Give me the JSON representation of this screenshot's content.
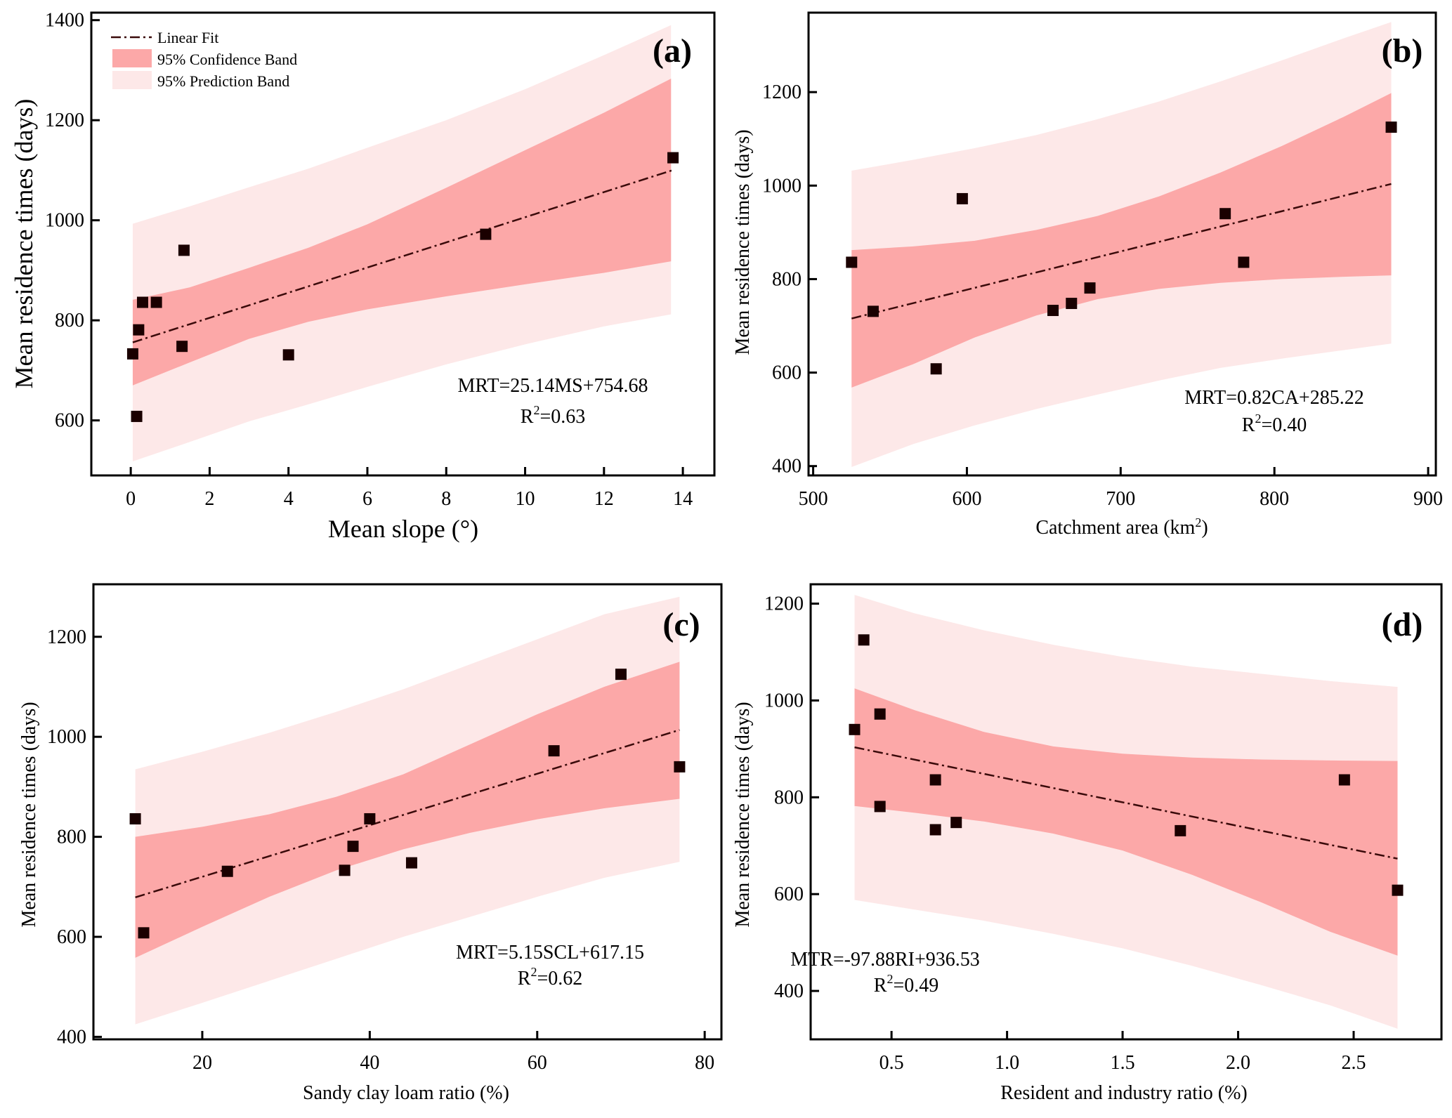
{
  "colors": {
    "confidence_band": "#fca8a8",
    "prediction_band": "#fde8e8",
    "point": "#1a0000",
    "fit_line": "#3a0a0a"
  },
  "legend": {
    "items": [
      {
        "label": "Linear Fit",
        "kind": "line"
      },
      {
        "label": "95% Confidence Band",
        "kind": "confidence"
      },
      {
        "label": "95% Prediction Band",
        "kind": "prediction"
      }
    ],
    "placement": "top-left of panel (a)"
  },
  "chart_data": [
    {
      "type": "scatter",
      "panel": "(a)",
      "xlabel": "Mean slope (°)",
      "ylabel": "Mean residence times (days)",
      "xlim": [
        -1,
        14.8
      ],
      "ylim": [
        490,
        1415
      ],
      "xticks": [
        0,
        2,
        4,
        6,
        8,
        10,
        12,
        14
      ],
      "yticks": [
        600,
        800,
        1000,
        1200,
        1400
      ],
      "points": [
        [
          0.05,
          733
        ],
        [
          0.15,
          608
        ],
        [
          0.2,
          781
        ],
        [
          0.3,
          836
        ],
        [
          0.65,
          836
        ],
        [
          1.3,
          748
        ],
        [
          1.35,
          940
        ],
        [
          4.0,
          731
        ],
        [
          9.0,
          972
        ],
        [
          13.75,
          1125
        ]
      ],
      "fit": {
        "slope": 25.14,
        "intercept": 754.68,
        "xrange": [
          0.05,
          13.75
        ]
      },
      "confidence_band": {
        "x": [
          0.05,
          1.5,
          3,
          4.5,
          6,
          8,
          10,
          12,
          13.7
        ],
        "upper": [
          841,
          866,
          905,
          945,
          992,
          1065,
          1140,
          1215,
          1283
        ],
        "lower": [
          670,
          716,
          763,
          797,
          822,
          848,
          872,
          895,
          918
        ]
      },
      "prediction_band": {
        "x": [
          0.05,
          1.5,
          3,
          4.5,
          6,
          8,
          10,
          12,
          13.7
        ],
        "upper": [
          993,
          1028,
          1066,
          1103,
          1145,
          1200,
          1262,
          1330,
          1390
        ],
        "lower": [
          518,
          557,
          598,
          632,
          667,
          712,
          752,
          788,
          812
        ]
      },
      "equation": "MRT=25.14MS+754.68",
      "r2": "R2=0.63",
      "r2_base": "R",
      "r2_sup": "2",
      "r2_val": "=0.63"
    },
    {
      "type": "scatter",
      "panel": "(b)",
      "xlabel_base": "Catchment area (km",
      "xlabel_sup": "2",
      "xlabel_end": ")",
      "ylabel": "Mean residence times (days)",
      "xlim": [
        497,
        905
      ],
      "ylim": [
        380,
        1370
      ],
      "xticks": [
        500,
        600,
        700,
        800,
        900
      ],
      "yticks": [
        400,
        600,
        800,
        1000,
        1200
      ],
      "points": [
        [
          525,
          836
        ],
        [
          539,
          731
        ],
        [
          580,
          608
        ],
        [
          597,
          972
        ],
        [
          656,
          733
        ],
        [
          668,
          748
        ],
        [
          680,
          781
        ],
        [
          768,
          940
        ],
        [
          780,
          836
        ],
        [
          876,
          1125
        ]
      ],
      "fit": {
        "slope": 0.82,
        "intercept": 285.22,
        "xrange": [
          525,
          876
        ]
      },
      "confidence_band": {
        "x": [
          525,
          565,
          605,
          645,
          685,
          725,
          765,
          805,
          845,
          876
        ],
        "upper": [
          862,
          870,
          882,
          905,
          935,
          977,
          1028,
          1085,
          1147,
          1198
        ],
        "lower": [
          568,
          618,
          675,
          722,
          757,
          779,
          792,
          800,
          805,
          808
        ]
      },
      "prediction_band": {
        "x": [
          525,
          565,
          605,
          645,
          685,
          725,
          765,
          805,
          845,
          876
        ],
        "upper": [
          1032,
          1055,
          1080,
          1108,
          1142,
          1180,
          1223,
          1268,
          1315,
          1350
        ],
        "lower": [
          398,
          447,
          487,
          522,
          553,
          583,
          610,
          630,
          648,
          662
        ]
      },
      "equation": "MRT=0.82CA+285.22",
      "r2_base": "R",
      "r2_sup": "2",
      "r2_val": "=0.40"
    },
    {
      "type": "scatter",
      "panel": "(c)",
      "xlabel": "Sandy clay loam ratio (%)",
      "ylabel": "Mean residence times (days)",
      "xlim": [
        7,
        82
      ],
      "ylim": [
        395,
        1305
      ],
      "xticks": [
        20,
        40,
        60,
        80
      ],
      "yticks": [
        400,
        600,
        800,
        1000,
        1200
      ],
      "points": [
        [
          12,
          836
        ],
        [
          13,
          608
        ],
        [
          23,
          731
        ],
        [
          37,
          733
        ],
        [
          38,
          781
        ],
        [
          40,
          836
        ],
        [
          45,
          748
        ],
        [
          62,
          972
        ],
        [
          70,
          1125
        ],
        [
          77,
          940
        ]
      ],
      "fit": {
        "slope": 5.15,
        "intercept": 617.15,
        "xrange": [
          12,
          77
        ]
      },
      "confidence_band": {
        "x": [
          12,
          20,
          28,
          36,
          44,
          52,
          60,
          68,
          77
        ],
        "upper": [
          800,
          820,
          845,
          880,
          925,
          985,
          1045,
          1100,
          1150
        ],
        "lower": [
          558,
          620,
          680,
          733,
          775,
          808,
          835,
          857,
          876
        ]
      },
      "prediction_band": {
        "x": [
          12,
          20,
          28,
          36,
          44,
          52,
          60,
          68,
          77
        ],
        "upper": [
          935,
          970,
          1008,
          1050,
          1095,
          1145,
          1195,
          1245,
          1280
        ],
        "lower": [
          425,
          468,
          512,
          556,
          600,
          640,
          680,
          718,
          750
        ]
      },
      "equation": "MRT=5.15SCL+617.15",
      "r2_base": "R",
      "r2_sup": "2",
      "r2_val": "=0.62"
    },
    {
      "type": "scatter",
      "panel": "(d)",
      "xlabel": "Resident and industry ratio (%)",
      "ylabel": "Mean residence times (days)",
      "xlim": [
        0.15,
        2.88
      ],
      "ylim": [
        300,
        1240
      ],
      "xticks": [
        0.5,
        1.0,
        1.5,
        2.0,
        2.5
      ],
      "xtick_labels": [
        "0.5",
        "1.0",
        "1.5",
        "2.0",
        "2.5"
      ],
      "yticks": [
        400,
        600,
        800,
        1000,
        1200
      ],
      "points": [
        [
          0.34,
          940
        ],
        [
          0.38,
          1125
        ],
        [
          0.45,
          972
        ],
        [
          0.45,
          781
        ],
        [
          0.69,
          836
        ],
        [
          0.69,
          733
        ],
        [
          0.78,
          748
        ],
        [
          1.75,
          731
        ],
        [
          2.46,
          836
        ],
        [
          2.69,
          608
        ]
      ],
      "fit": {
        "slope": -97.88,
        "intercept": 936.53,
        "xrange": [
          0.34,
          2.69
        ]
      },
      "confidence_band": {
        "x": [
          0.34,
          0.6,
          0.9,
          1.2,
          1.5,
          1.8,
          2.1,
          2.4,
          2.69
        ],
        "upper": [
          1025,
          980,
          935,
          905,
          890,
          882,
          878,
          876,
          875
        ],
        "lower": [
          782,
          768,
          750,
          725,
          690,
          640,
          583,
          522,
          473
        ]
      },
      "prediction_band": {
        "x": [
          0.34,
          0.6,
          0.9,
          1.2,
          1.5,
          1.8,
          2.1,
          2.4,
          2.69
        ],
        "upper": [
          1218,
          1180,
          1145,
          1115,
          1090,
          1070,
          1055,
          1040,
          1028
        ],
        "lower": [
          588,
          568,
          545,
          518,
          488,
          452,
          412,
          370,
          322
        ]
      },
      "equation": "MTR=-97.88RI+936.53",
      "r2_base": "R",
      "r2_sup": "2",
      "r2_val": "=0.49"
    }
  ]
}
